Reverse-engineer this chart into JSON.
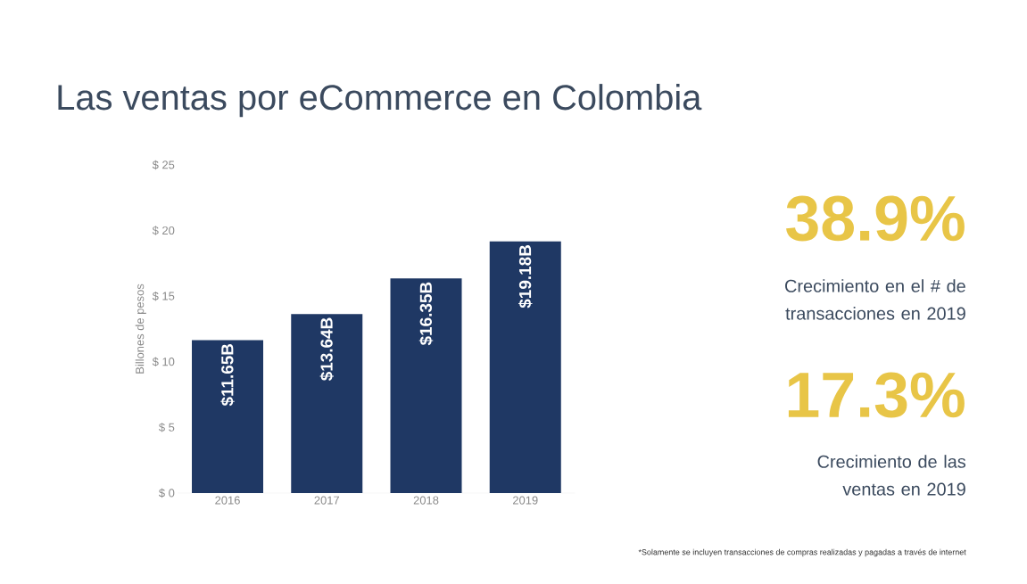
{
  "chart_data": {
    "type": "bar",
    "title": "Las ventas por eCommerce en Colombia",
    "ylabel": "Billones de pesos",
    "categories": [
      "2016",
      "2017",
      "2018",
      "2019"
    ],
    "values": [
      11.65,
      13.64,
      16.35,
      19.18
    ],
    "value_labels": [
      "$11.65B",
      "$13.64B",
      "$16.35B",
      "$19.18B"
    ],
    "color": "#1f3864",
    "ylim": [
      0,
      25
    ],
    "yticks": [
      {
        "value": 0,
        "label": "$ 0"
      },
      {
        "value": 5,
        "label": "$ 5"
      },
      {
        "value": 10,
        "label": "$ 10"
      },
      {
        "value": 15,
        "label": "$ 15"
      },
      {
        "value": 20,
        "label": "$ 20"
      },
      {
        "value": 25,
        "label": "$ 25"
      }
    ],
    "annotations": [
      "38.9%",
      "Crecimiento en el # de transacciones en 2019",
      "17.3%",
      "Crecimiento de las ventas en 2019",
      "*Solamente se incluyen transacciones de compras realizadas y pagadas a través de internet"
    ]
  }
}
